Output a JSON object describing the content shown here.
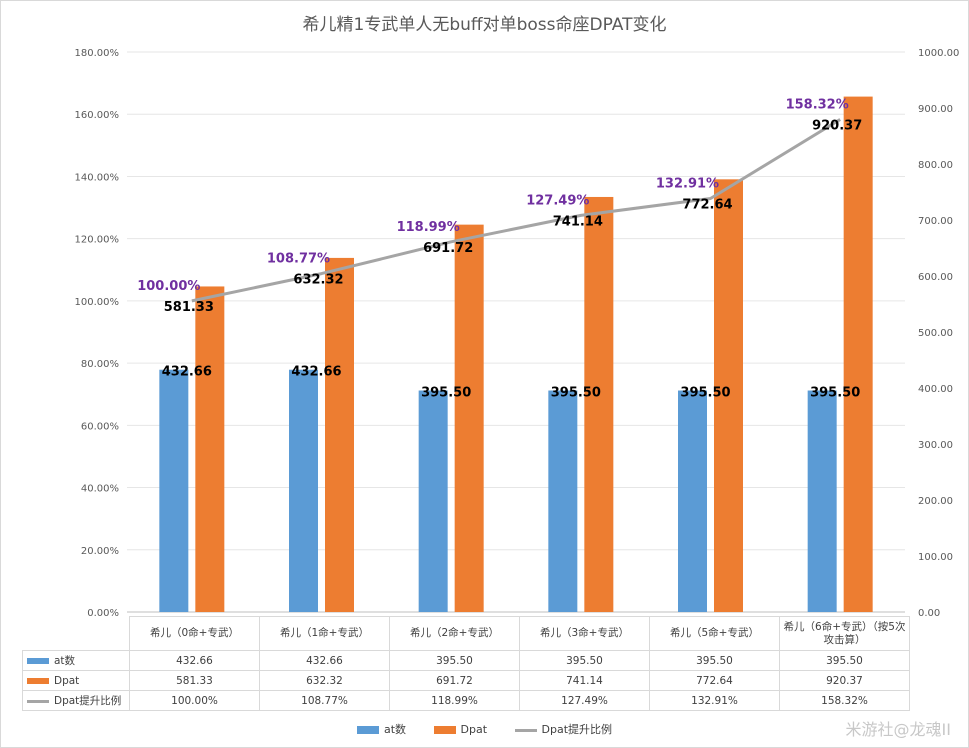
{
  "chart_data": {
    "type": "bar",
    "title": "希儿精1专武单人无buff对单boss命座DPAT变化",
    "categories": [
      "希儿（0命+专武）",
      "希儿（1命+专武）",
      "希儿（2命+专武）",
      "希儿（3命+专武）",
      "希儿（5命+专武）",
      "希儿（6命+专武）（按5次攻击算）"
    ],
    "series": [
      {
        "name": "at数",
        "kind": "bar",
        "axis": "right",
        "color": "#5b9bd5",
        "values": [
          432.66,
          432.66,
          395.5,
          395.5,
          395.5,
          395.5
        ],
        "labels": [
          "432.66",
          "432.66",
          "395.50",
          "395.50",
          "395.50",
          "395.50"
        ]
      },
      {
        "name": "Dpat",
        "kind": "bar",
        "axis": "right",
        "color": "#ed7d31",
        "values": [
          581.33,
          632.32,
          691.72,
          741.14,
          772.64,
          920.37
        ],
        "labels": [
          "581.33",
          "632.32",
          "691.72",
          "741.14",
          "772.64",
          "920.37"
        ]
      },
      {
        "name": "Dpat提升比例",
        "kind": "line",
        "axis": "left",
        "color": "#a5a5a5",
        "values": [
          100.0,
          108.77,
          118.99,
          127.49,
          132.91,
          158.32
        ],
        "labels": [
          "100.00%",
          "108.77%",
          "118.99%",
          "127.49%",
          "132.91%",
          "158.32%"
        ]
      }
    ],
    "y_left": {
      "min": 0,
      "max": 180,
      "step": 20,
      "ticks": [
        "0.00%",
        "20.00%",
        "40.00%",
        "60.00%",
        "80.00%",
        "100.00%",
        "120.00%",
        "140.00%",
        "160.00%",
        "180.00%"
      ]
    },
    "y_right": {
      "min": 0,
      "max": 1000,
      "step": 100,
      "ticks": [
        "0.00",
        "100.00",
        "200.00",
        "300.00",
        "400.00",
        "500.00",
        "600.00",
        "700.00",
        "800.00",
        "900.00",
        "1000.00"
      ]
    },
    "grid": true,
    "legend": "bottom",
    "data_table": true
  },
  "table": {
    "categories": [
      "希儿（0命+专武）",
      "希儿（1命+专武）",
      "希儿（2命+专武）",
      "希儿（3命+专武）",
      "希儿（5命+专武）",
      "希儿（6命+专武）（按5次攻击算）"
    ],
    "rows": [
      {
        "label": "at数",
        "cells": [
          "432.66",
          "432.66",
          "395.50",
          "395.50",
          "395.50",
          "395.50"
        ]
      },
      {
        "label": "Dpat",
        "cells": [
          "581.33",
          "632.32",
          "691.72",
          "741.14",
          "772.64",
          "920.37"
        ]
      },
      {
        "label": "Dpat提升比例",
        "cells": [
          "100.00%",
          "108.77%",
          "118.99%",
          "127.49%",
          "132.91%",
          "158.32%"
        ]
      }
    ]
  },
  "legend": {
    "at": "at数",
    "dpat": "Dpat",
    "ratio": "Dpat提升比例"
  },
  "watermark": "米游社@龙魂II"
}
